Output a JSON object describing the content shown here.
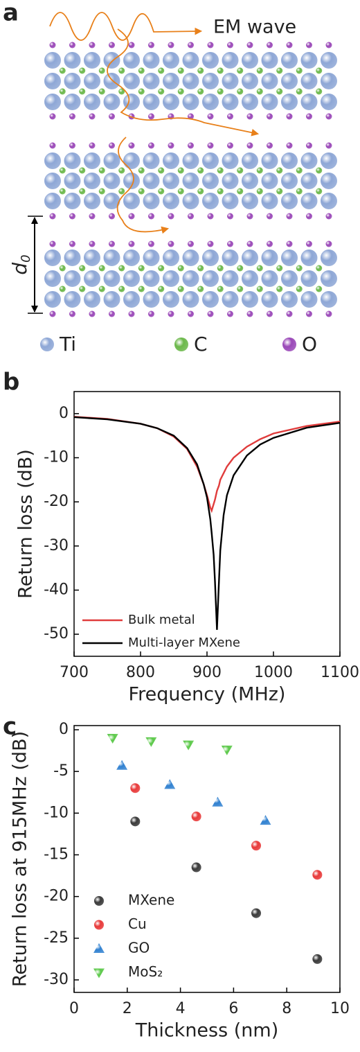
{
  "diagram": {
    "panel": "a",
    "wave_label": "EM wave",
    "spacing_label": "d",
    "spacing_sub": "0",
    "legend": [
      {
        "name": "Ti",
        "color": "#8ea7d6"
      },
      {
        "name": "C",
        "color": "#6bb84a"
      },
      {
        "name": "O",
        "color": "#9a48b8"
      }
    ]
  },
  "chart_data": [
    {
      "type": "line",
      "panel": "b",
      "x_label": "Frequency (MHz)",
      "y_label": "Return loss (dB)",
      "x": [
        700,
        750,
        800,
        825,
        850,
        870,
        885,
        895,
        900,
        905,
        907,
        910,
        912,
        915,
        918,
        920,
        925,
        930,
        940,
        960,
        980,
        1000,
        1050,
        1100
      ],
      "series": [
        {
          "name": "Bulk metal",
          "color": "#e03c3c",
          "values": [
            -0.7,
            -1.2,
            -2.3,
            -3.3,
            -5.2,
            -8,
            -12,
            -16,
            -18.5,
            -21.3,
            -22,
            -20.5,
            -19.5,
            -17.5,
            -16.3,
            -15,
            -13.5,
            -12,
            -10,
            -7.5,
            -5.8,
            -4.5,
            -2.8,
            -1.8
          ]
        },
        {
          "name": "Multi-layer MXene",
          "color": "#000000",
          "values": [
            -0.8,
            -1.3,
            -2.3,
            -3.3,
            -5,
            -7.8,
            -11.5,
            -16,
            -19,
            -24,
            -27,
            -32,
            -38,
            -49,
            -38,
            -31,
            -23,
            -18.5,
            -14,
            -9.5,
            -7,
            -5.5,
            -3.2,
            -2.1
          ]
        }
      ],
      "xlim": [
        700,
        1100
      ],
      "xticks": [
        700,
        800,
        900,
        1000,
        1100
      ],
      "ylim": [
        -55,
        5
      ],
      "yticks": [
        0,
        -10,
        -20,
        -30,
        -40,
        -50
      ],
      "legend": "lower-left"
    },
    {
      "type": "scatter",
      "panel": "c",
      "x_label": "Thickness (nm)",
      "y_label": "Return loss at 915MHz (dB)",
      "series": [
        {
          "name": "MXene",
          "color": "#3a3a3a",
          "marker": "sphere",
          "x": [
            2.3,
            4.6,
            6.85,
            9.15
          ],
          "values": [
            -11,
            -16.5,
            -22,
            -27.5
          ]
        },
        {
          "name": "Cu",
          "color": "#e83a3a",
          "marker": "sphere",
          "x": [
            2.3,
            4.6,
            6.85,
            9.15
          ],
          "values": [
            -7,
            -10.4,
            -13.9,
            -17.4
          ]
        },
        {
          "name": "GO",
          "color": "#2f80d0",
          "marker": "triangle-up",
          "x": [
            1.8,
            3.6,
            5.4,
            7.2
          ],
          "values": [
            -4.3,
            -6.6,
            -8.7,
            -10.9
          ]
        },
        {
          "name": "MoS₂",
          "color": "#5cc94a",
          "marker": "triangle-down",
          "x": [
            1.45,
            2.9,
            4.3,
            5.75
          ],
          "values": [
            -1.0,
            -1.4,
            -1.8,
            -2.4
          ]
        }
      ],
      "xlim": [
        0,
        10
      ],
      "xticks": [
        0,
        2,
        4,
        6,
        8,
        10
      ],
      "ylim": [
        -31.5,
        0.5
      ],
      "yticks": [
        0,
        -5,
        -10,
        -15,
        -20,
        -25,
        -30
      ],
      "legend": "lower-left"
    }
  ]
}
